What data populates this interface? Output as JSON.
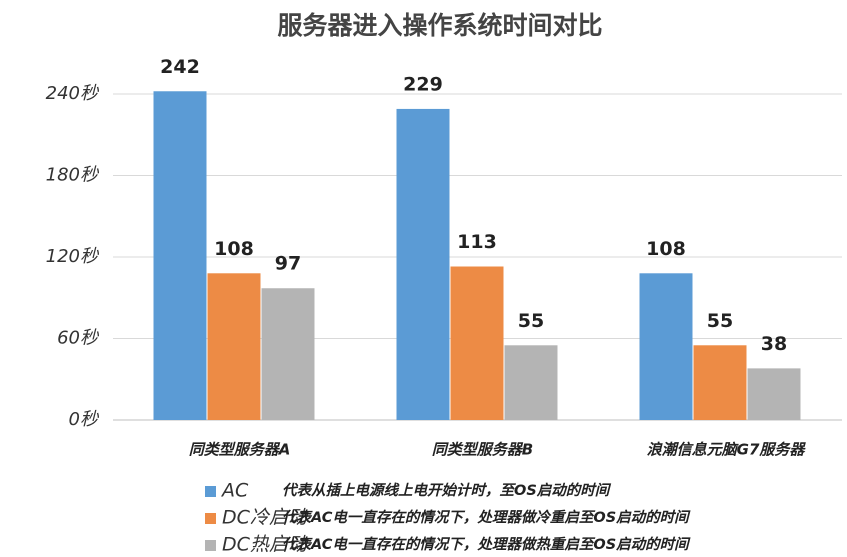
{
  "chart_data": {
    "type": "bar",
    "title": "服务器进入操作系统时间对比",
    "categories": [
      "同类型服务器A",
      "同类型服务器B",
      "浪潮信息元脑G7服务器"
    ],
    "series": [
      {
        "name": "AC",
        "description": "代表从插上电源线上电开始计时，至OS启动的时间",
        "color": "#5b9bd5",
        "values": [
          242,
          229,
          108
        ]
      },
      {
        "name": "DC冷启动",
        "description": "代表AC电一直存在的情况下，处理器做冷重启至OS启动的时间",
        "color": "#ed8b45",
        "values": [
          108,
          113,
          55
        ]
      },
      {
        "name": "DC热启动",
        "description": "代表AC电一直存在的情况下，处理器做热重启至OS启动的时间",
        "color": "#b4b4b4",
        "values": [
          97,
          55,
          38
        ]
      }
    ],
    "ylim": [
      0,
      250
    ],
    "yticks": [
      {
        "value": 0,
        "label": "0秒"
      },
      {
        "value": 60,
        "label": "60秒"
      },
      {
        "value": 120,
        "label": "120秒"
      },
      {
        "value": 180,
        "label": "180秒"
      },
      {
        "value": 240,
        "label": "240秒"
      }
    ],
    "grid": true,
    "legend": "bottom"
  }
}
